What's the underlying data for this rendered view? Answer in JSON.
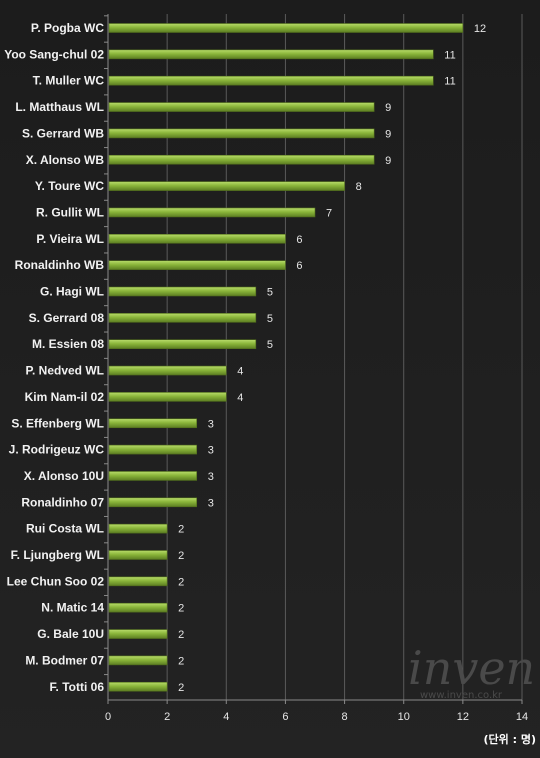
{
  "chart_data": {
    "type": "bar",
    "orientation": "horizontal",
    "categories": [
      "P. Pogba WC",
      "Yoo Sang-chul 02",
      "T. Muller WC",
      "L. Matthaus WL",
      "S. Gerrard WB",
      "X. Alonso WB",
      "Y. Toure WC",
      "R. Gullit WL",
      "P. Vieira WL",
      "Ronaldinho WB",
      "G. Hagi WL",
      "S. Gerrard 08",
      "M. Essien 08",
      "P. Nedved WL",
      "Kim Nam-il 02",
      "S. Effenberg WL",
      "J. Rodrigeuz WC",
      "X. Alonso 10U",
      "Ronaldinho 07",
      "Rui Costa WL",
      "F. Ljungberg WL",
      "Lee Chun Soo 02",
      "N. Matic 14",
      "G. Bale 10U",
      "M. Bodmer 07",
      "F. Totti 06"
    ],
    "values": [
      12,
      11,
      11,
      9,
      9,
      9,
      8,
      7,
      6,
      6,
      5,
      5,
      5,
      4,
      4,
      3,
      3,
      3,
      3,
      2,
      2,
      2,
      2,
      2,
      2,
      2
    ],
    "xlim": [
      0,
      14
    ],
    "xticks": [
      0,
      2,
      4,
      6,
      8,
      10,
      12,
      14
    ],
    "unit_note": "(단위 : 명)",
    "grid": true,
    "colors": {
      "bar": "#8ab53a",
      "bar_highlight": "#b8dc6a",
      "bar_shadow": "#5c7d22",
      "background": "#1e1e1e",
      "grid": "#5a5a5a"
    }
  },
  "watermark": {
    "brand": "inven",
    "url": "www.inven.co.kr"
  }
}
